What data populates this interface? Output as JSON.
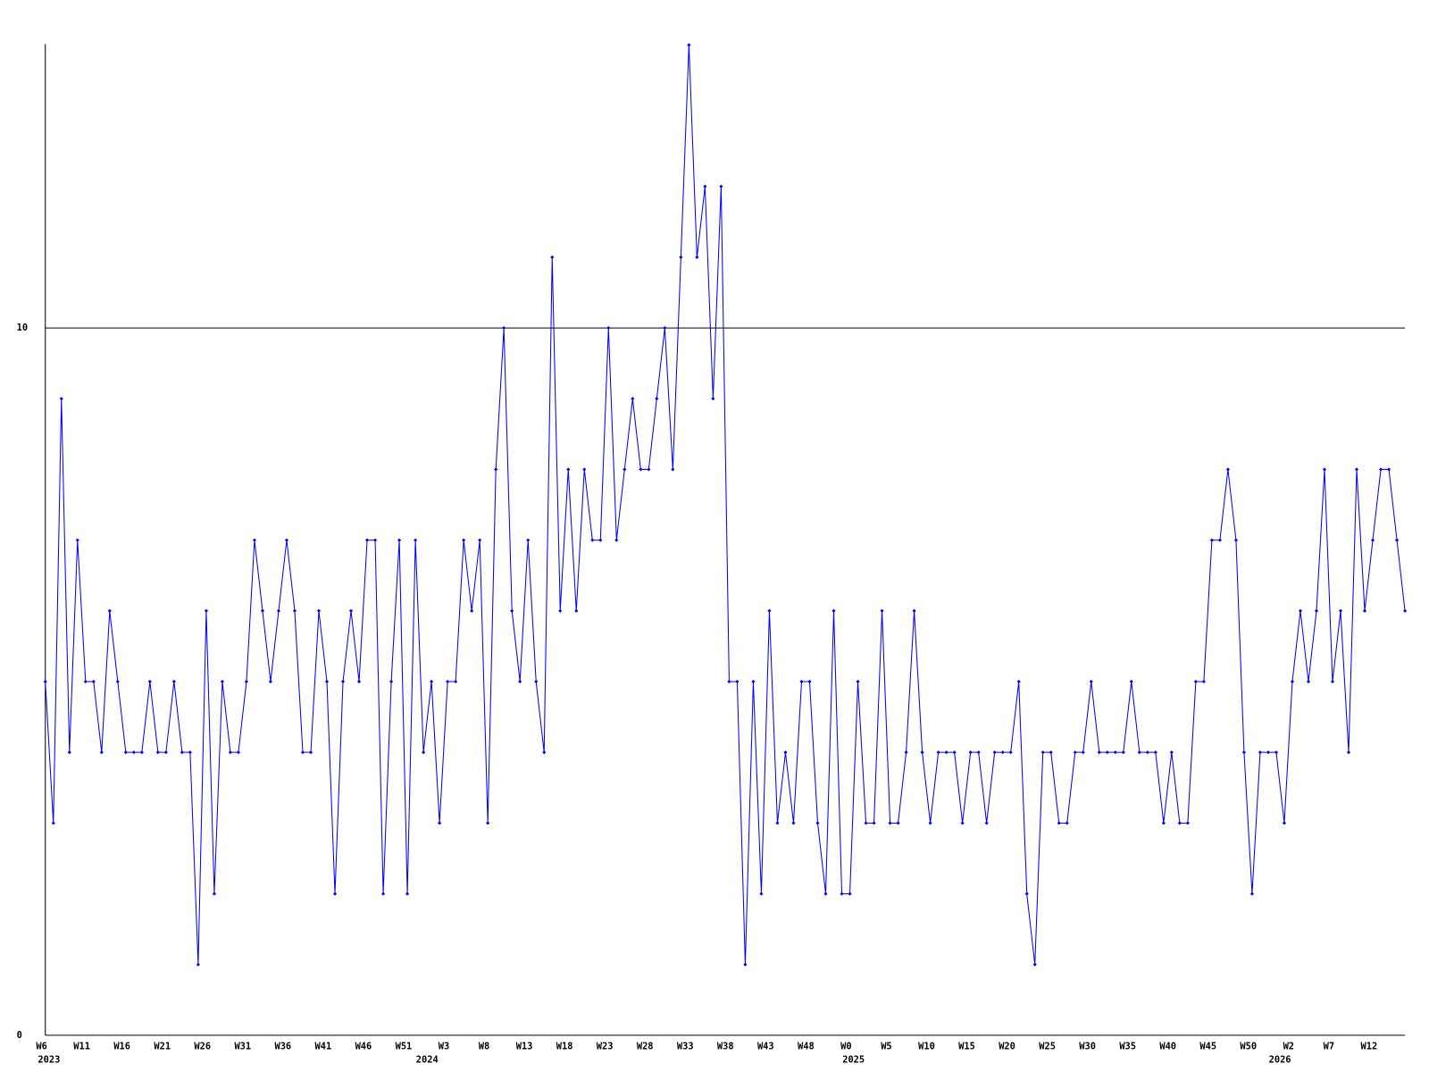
{
  "chart_data": {
    "type": "line",
    "categories": [
      "W6",
      null,
      null,
      null,
      null,
      "W11",
      null,
      null,
      null,
      null,
      "W16",
      null,
      null,
      null,
      null,
      "W21",
      null,
      null,
      null,
      null,
      "W26",
      null,
      null,
      null,
      null,
      "W31",
      null,
      null,
      null,
      null,
      "W36",
      null,
      null,
      null,
      null,
      "W41",
      null,
      null,
      null,
      null,
      "W46",
      null,
      null,
      null,
      null,
      "W51",
      null,
      null,
      null,
      null,
      "W3",
      null,
      null,
      null,
      null,
      "W8",
      null,
      null,
      null,
      null,
      "W13",
      null,
      null,
      null,
      null,
      "W18",
      null,
      null,
      null,
      null,
      "W23",
      null,
      null,
      null,
      null,
      "W28",
      null,
      null,
      null,
      null,
      "W33",
      null,
      null,
      null,
      null,
      "W38",
      null,
      null,
      null,
      null,
      "W43",
      null,
      null,
      null,
      null,
      "W48",
      null,
      null,
      null,
      null,
      "W0",
      null,
      null,
      null,
      null,
      "W5",
      null,
      null,
      null,
      null,
      "W10",
      null,
      null,
      null,
      null,
      "W15",
      null,
      null,
      null,
      null,
      "W20",
      null,
      null,
      null,
      null,
      "W25",
      null,
      null,
      null,
      null,
      "W30",
      null,
      null,
      null,
      null,
      "W35",
      null,
      null,
      null,
      null,
      "W40",
      null,
      null,
      null,
      null,
      "W45",
      null,
      null,
      null,
      null,
      "W50",
      null,
      null,
      null,
      null,
      "W2",
      null,
      null,
      null,
      null,
      "W7",
      null,
      null,
      null,
      null,
      "W12",
      null,
      null,
      null,
      null
    ],
    "year_labels": [
      "2023",
      null,
      null,
      null,
      null,
      null,
      null,
      null,
      null,
      null,
      null,
      null,
      null,
      null,
      null,
      null,
      null,
      null,
      null,
      null,
      null,
      null,
      null,
      null,
      null,
      null,
      null,
      null,
      null,
      null,
      null,
      null,
      null,
      null,
      null,
      null,
      null,
      null,
      null,
      null,
      null,
      null,
      null,
      null,
      null,
      null,
      null,
      "2024",
      null,
      null,
      null,
      null,
      null,
      null,
      null,
      null,
      null,
      null,
      null,
      null,
      null,
      null,
      null,
      null,
      null,
      null,
      null,
      null,
      null,
      null,
      null,
      null,
      null,
      null,
      null,
      null,
      null,
      null,
      null,
      null,
      null,
      null,
      null,
      null,
      null,
      null,
      null,
      null,
      null,
      null,
      null,
      null,
      null,
      null,
      null,
      null,
      null,
      null,
      null,
      null,
      "2025",
      null,
      null,
      null,
      null,
      null,
      null,
      null,
      null,
      null,
      null,
      null,
      null,
      null,
      null,
      null,
      null,
      null,
      null,
      null,
      null,
      null,
      null,
      null,
      null,
      null,
      null,
      null,
      null,
      null,
      null,
      null,
      null,
      null,
      null,
      null,
      null,
      null,
      null,
      null,
      null,
      null,
      null,
      null,
      null,
      null,
      null,
      null,
      null,
      null,
      null,
      null,
      null,
      "2026",
      null,
      null,
      null,
      null,
      null,
      null,
      null,
      null,
      null,
      null,
      null,
      null,
      null,
      null,
      null,
      null
    ],
    "series": [
      {
        "color": "#0000ff",
        "values": [
          5,
          3,
          9,
          4,
          7,
          5,
          5,
          4,
          6,
          5,
          4,
          4,
          4,
          5,
          4,
          4,
          5,
          4,
          4,
          1,
          6,
          2,
          5,
          4,
          4,
          5,
          7,
          6,
          5,
          6,
          7,
          6,
          4,
          4,
          6,
          5,
          2,
          5,
          6,
          5,
          7,
          7,
          2,
          5,
          7,
          2,
          7,
          4,
          5,
          3,
          5,
          5,
          7,
          6,
          7,
          3,
          8,
          10,
          6,
          5,
          7,
          5,
          4,
          11,
          6,
          8,
          6,
          8,
          7,
          7,
          10,
          7,
          8,
          9,
          8,
          8,
          9,
          10,
          8,
          11,
          14,
          11,
          12,
          9,
          12,
          5,
          5,
          1,
          5,
          2,
          6,
          3,
          4,
          3,
          5,
          5,
          3,
          2,
          6,
          2,
          2,
          5,
          3,
          3,
          6,
          3,
          3,
          4,
          6,
          4,
          3,
          4,
          4,
          4,
          3,
          4,
          4,
          3,
          4,
          4,
          4,
          5,
          2,
          1,
          4,
          4,
          3,
          3,
          4,
          4,
          5,
          4,
          4,
          4,
          4,
          5,
          4,
          4,
          4,
          3,
          4,
          3,
          3,
          5,
          5,
          7,
          7,
          8,
          7,
          4,
          2,
          4,
          4,
          4,
          3,
          5,
          6,
          5,
          6,
          8,
          5,
          6,
          4,
          8,
          6,
          7,
          8,
          8,
          7,
          6
        ]
      }
    ],
    "ylim": [
      0,
      14
    ],
    "yticks": [
      0,
      10
    ],
    "grid": true
  }
}
